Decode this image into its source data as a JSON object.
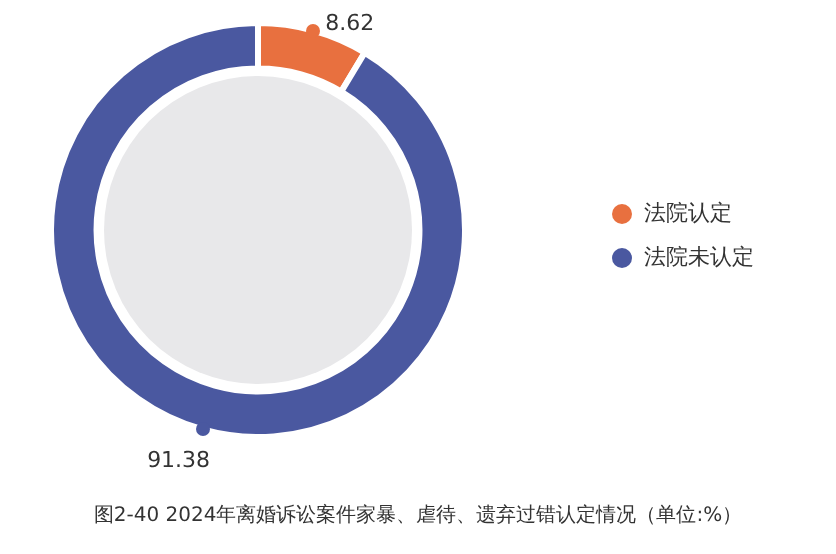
{
  "chart_data": {
    "type": "donut",
    "title": "图2-40 2024年离婚诉讼案件家暴、虐待、遗弃过错认定情况（单位:%）",
    "categories": [
      "法院认定",
      "法院未认定"
    ],
    "values": [
      8.62,
      91.38
    ],
    "colors": [
      "#e8703f",
      "#4a58a0"
    ],
    "data_labels": true,
    "legend": "right"
  }
}
